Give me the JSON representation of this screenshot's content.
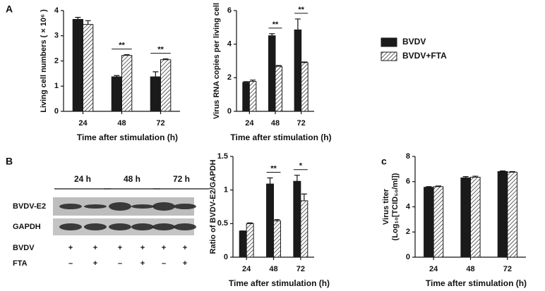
{
  "panel_labels": [
    "A",
    "B",
    "c"
  ],
  "blot": {
    "lanes": [
      "24 h",
      "48 h",
      "72 h"
    ],
    "rows": [
      "BVDV-E2",
      "GAPDH"
    ],
    "treatments": [
      {
        "name": "BVDV",
        "signs": [
          "+",
          "+",
          "+",
          "+",
          "+",
          "+"
        ]
      },
      {
        "name": "FTA",
        "signs": [
          "–",
          "+",
          "–",
          "+",
          "–",
          "+"
        ]
      }
    ]
  },
  "chart_data": [
    {
      "type": "bar",
      "ylabel": [
        "Living cell numbers ( × 10⁶ )"
      ],
      "xlabel": "Time after stimulation (h)",
      "categories": [
        "24",
        "48",
        "72"
      ],
      "ylim": [
        0,
        4
      ],
      "yticks": [
        0,
        1,
        2,
        3,
        4
      ],
      "series": [
        {
          "color": "#1a1a1a",
          "hatch": false,
          "values": [
            3.65,
            1.37,
            1.37
          ],
          "errors": [
            0.08,
            0.05,
            0.2
          ]
        },
        {
          "color": "#1a1a1a",
          "hatch": true,
          "values": [
            3.45,
            2.22,
            2.05
          ],
          "errors": [
            0.15,
            0.03,
            0.03
          ]
        }
      ],
      "annotations": [
        {
          "text": "**",
          "category": "48"
        },
        {
          "text": "**",
          "category": "72"
        }
      ]
    },
    {
      "type": "bar",
      "ylabel": [
        "Virus RNA copies per living cell"
      ],
      "xlabel": "Time after stimulation (h)",
      "categories": [
        "24",
        "48",
        "72"
      ],
      "ylim": [
        0,
        6
      ],
      "yticks": [
        0,
        2,
        4,
        6
      ],
      "legend": "right",
      "series": [
        {
          "name": "BVDV",
          "color": "#1a1a1a",
          "hatch": false,
          "values": [
            1.72,
            4.5,
            4.85
          ],
          "errors": [
            0.05,
            0.12,
            0.65
          ]
        },
        {
          "name": "BVDV+FTA",
          "color": "#1a1a1a",
          "hatch": true,
          "values": [
            1.78,
            2.68,
            2.9
          ],
          "errors": [
            0.08,
            0.05,
            0.04
          ]
        }
      ],
      "annotations": [
        {
          "text": "**",
          "category": "48"
        },
        {
          "text": "**",
          "category": "72"
        }
      ]
    },
    {
      "type": "bar",
      "ylabel": [
        "Ratio of BVDV-E2/GAPDH"
      ],
      "xlabel": "Time after stimulation (h)",
      "categories": [
        "24",
        "48",
        "72"
      ],
      "ylim": [
        0,
        1.5
      ],
      "yticks": [
        0,
        0.5,
        1,
        1.5
      ],
      "series": [
        {
          "color": "#1a1a1a",
          "hatch": false,
          "values": [
            0.39,
            1.09,
            1.13
          ],
          "errors": [
            0.0,
            0.09,
            0.09
          ]
        },
        {
          "color": "#1a1a1a",
          "hatch": true,
          "values": [
            0.5,
            0.54,
            0.84
          ],
          "errors": [
            0.01,
            0.02,
            0.1
          ]
        }
      ],
      "annotations": [
        {
          "text": "**",
          "category": "48"
        },
        {
          "text": "*",
          "category": "72"
        }
      ]
    },
    {
      "type": "bar",
      "ylabel": [
        "Virus titer",
        "(Log₁₀[TCID₅₀/ml])"
      ],
      "xlabel": "Time after stimulation (h)",
      "categories": [
        "24",
        "48",
        "72"
      ],
      "ylim": [
        0,
        8
      ],
      "yticks": [
        0,
        2,
        4,
        6,
        8
      ],
      "series": [
        {
          "color": "#1a1a1a",
          "hatch": false,
          "values": [
            5.55,
            6.3,
            6.8
          ],
          "errors": [
            0.05,
            0.1,
            0.05
          ]
        },
        {
          "color": "#1a1a1a",
          "hatch": true,
          "values": [
            5.6,
            6.35,
            6.75
          ],
          "errors": [
            0.05,
            0.08,
            0.05
          ]
        }
      ]
    }
  ]
}
